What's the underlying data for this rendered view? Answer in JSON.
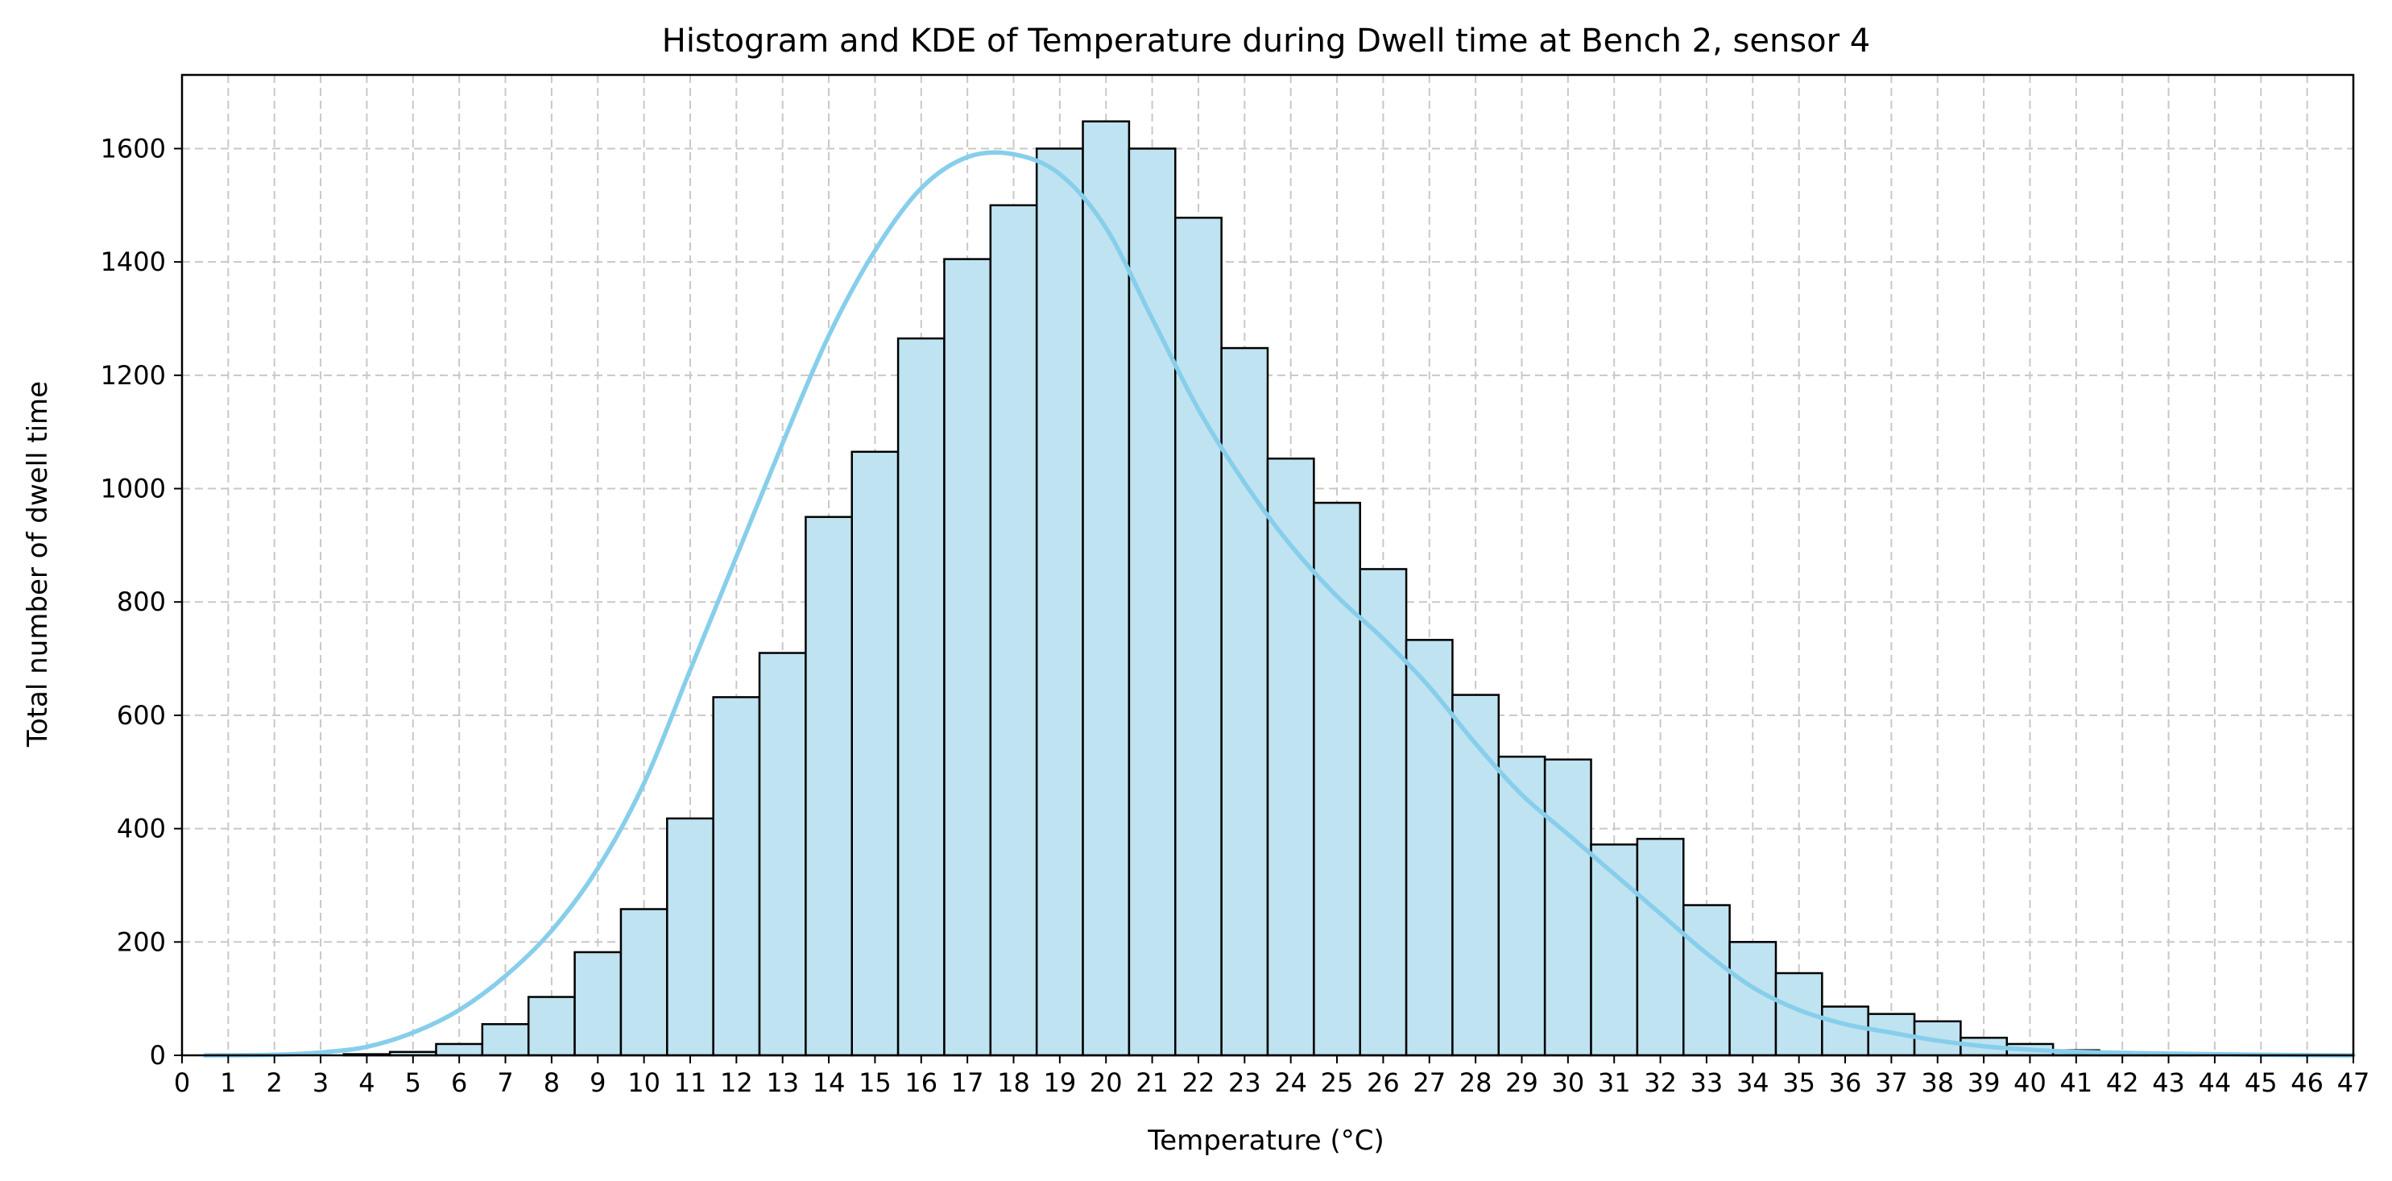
{
  "chart_data": {
    "type": "bar",
    "title": "Histogram and KDE of Temperature during Dwell time at Bench 2, sensor 4",
    "xlabel": "Temperature (°C)",
    "ylabel": "Total number of dwell time",
    "xlim": [
      0,
      47
    ],
    "ylim": [
      0,
      1730
    ],
    "xticks": [
      0,
      1,
      2,
      3,
      4,
      5,
      6,
      7,
      8,
      9,
      10,
      11,
      12,
      13,
      14,
      15,
      16,
      17,
      18,
      19,
      20,
      21,
      22,
      23,
      24,
      25,
      26,
      27,
      28,
      29,
      30,
      31,
      32,
      33,
      34,
      35,
      36,
      37,
      38,
      39,
      40,
      41,
      42,
      43,
      44,
      45,
      46,
      47
    ],
    "yticks": [
      0,
      200,
      400,
      600,
      800,
      1000,
      1200,
      1400,
      1600
    ],
    "grid": true,
    "bar_color": "#bfe3f0",
    "bar_edge_color": "#000000",
    "kde_color": "#87ceeb",
    "bins": {
      "start": 0.5,
      "width": 1,
      "counts": [
        0,
        0,
        0,
        2,
        6,
        20,
        55,
        103,
        182,
        258,
        418,
        632,
        710,
        950,
        1065,
        1265,
        1405,
        1500,
        1600,
        1648,
        1600,
        1478,
        1248,
        1053,
        975,
        858,
        733,
        636,
        527,
        522,
        372,
        382,
        265,
        200,
        145,
        86,
        73,
        60,
        31,
        20,
        9,
        5,
        3,
        2,
        1,
        1
      ]
    },
    "kde": {
      "x": [
        0.5,
        2,
        3,
        4,
        5,
        6,
        7,
        8,
        9,
        10,
        11,
        12,
        13,
        14,
        15,
        16,
        17,
        18,
        19,
        20,
        21,
        22,
        23,
        24,
        25,
        26,
        27,
        28,
        29,
        30,
        31,
        32,
        33,
        34,
        35,
        36,
        37,
        38,
        39,
        40,
        41,
        43,
        45,
        47
      ],
      "y": [
        0,
        1,
        5,
        15,
        40,
        80,
        140,
        220,
        330,
        480,
        680,
        880,
        1080,
        1270,
        1420,
        1530,
        1585,
        1590,
        1555,
        1460,
        1300,
        1140,
        1010,
        900,
        810,
        735,
        650,
        550,
        460,
        390,
        320,
        250,
        180,
        120,
        80,
        55,
        40,
        26,
        16,
        10,
        6,
        3,
        1,
        0
      ]
    }
  }
}
